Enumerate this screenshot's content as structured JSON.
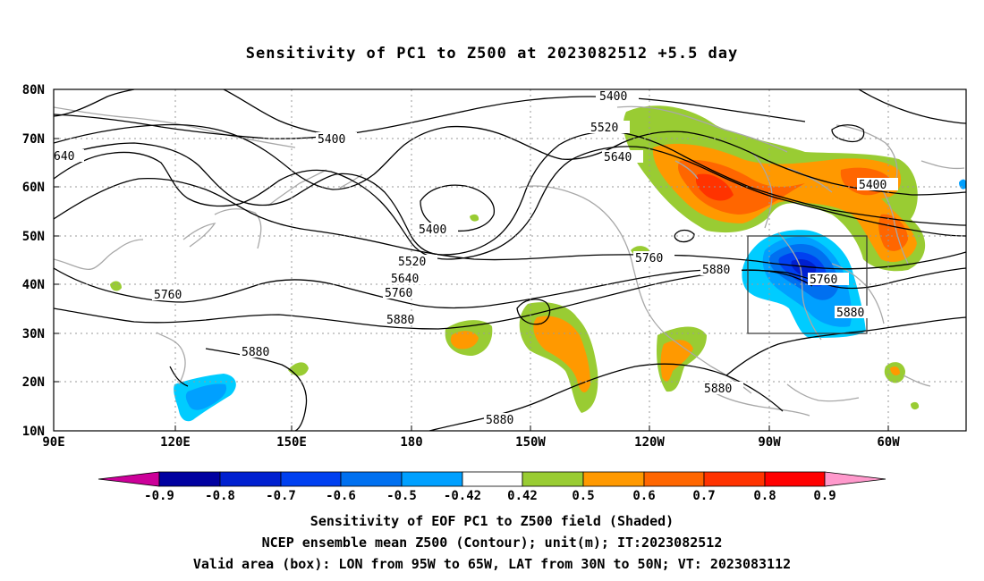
{
  "title": "Sensitivity of PC1 to Z500 at 2023082512 +5.5 day",
  "lat_labels": [
    "80N",
    "70N",
    "60N",
    "50N",
    "40N",
    "30N",
    "20N",
    "10N"
  ],
  "lon_labels": [
    "90E",
    "120E",
    "150E",
    "180",
    "150W",
    "120W",
    "90W",
    "60W"
  ],
  "contour_labels": [
    "5400",
    "5400",
    "5400",
    "5400",
    "5520",
    "5520",
    "5640",
    "5640",
    "5760",
    "5760",
    "5760",
    "5760",
    "5880",
    "5880",
    "5880",
    "5880",
    "5880",
    "5880",
    "640"
  ],
  "colorbar": {
    "labels": [
      "-0.9",
      "-0.8",
      "-0.7",
      "-0.6",
      "-0.5",
      "-0.42",
      "0.42",
      "0.5",
      "0.6",
      "0.7",
      "0.8",
      "0.9"
    ],
    "colors": [
      "#cc0099",
      "#0000a0",
      "#0020d0",
      "#0040f0",
      "#0070f0",
      "#00a0ff",
      "#00ccff",
      "#ffffff",
      "#99cc33",
      "#ff9900",
      "#ff6600",
      "#ff3300",
      "#ff0000",
      "#ff99cc"
    ]
  },
  "footer": {
    "line1": "Sensitivity of EOF PC1 to Z500 field (Shaded)",
    "line2": "NCEP ensemble mean Z500 (Contour); unit(m); IT:2023082512",
    "line3": "Valid area (box): LON from 95W to 65W, LAT from 30N to 50N; VT: 2023083112"
  }
}
